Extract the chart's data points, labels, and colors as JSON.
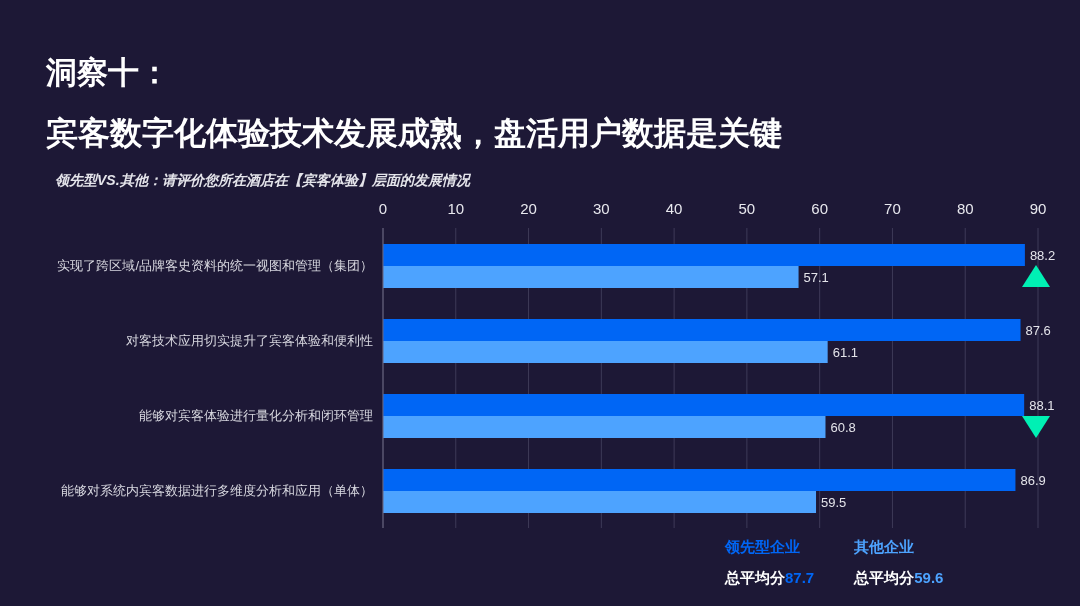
{
  "chart_data": {
    "type": "bar",
    "orientation": "horizontal",
    "title": "洞察十：",
    "subtitle": "宾客数字化体验技术发展成熟，盘活用户数据是关键",
    "categories": [
      "实现了跨区域/品牌客史资料的统一视图和管理（集团）",
      "对客技术应用切实提升了宾客体验和便利性",
      "能够对宾客体验进行量化分析和闭环管理",
      "能够对系统内宾客数据进行多维度分析和应用（单体）"
    ],
    "series": [
      {
        "name": "领先型企业",
        "color": "#0066f5",
        "values": [
          88.2,
          87.6,
          88.1,
          86.9
        ]
      },
      {
        "name": "其他企业",
        "color": "#4da3ff",
        "values": [
          57.1,
          61.1,
          60.8,
          59.5
        ]
      }
    ],
    "xlim": [
      0,
      90
    ],
    "xticks": [
      0,
      10,
      20,
      30,
      40,
      50,
      60,
      70,
      80,
      90
    ],
    "grid": "x",
    "data_labels": true,
    "legend": "bottom right",
    "annotations": [
      "领先型VS.其他：请评价您所在酒店在【宾客体验】层面的发展情况",
      "总平均分87.7",
      "总平均分59.6"
    ]
  }
}
